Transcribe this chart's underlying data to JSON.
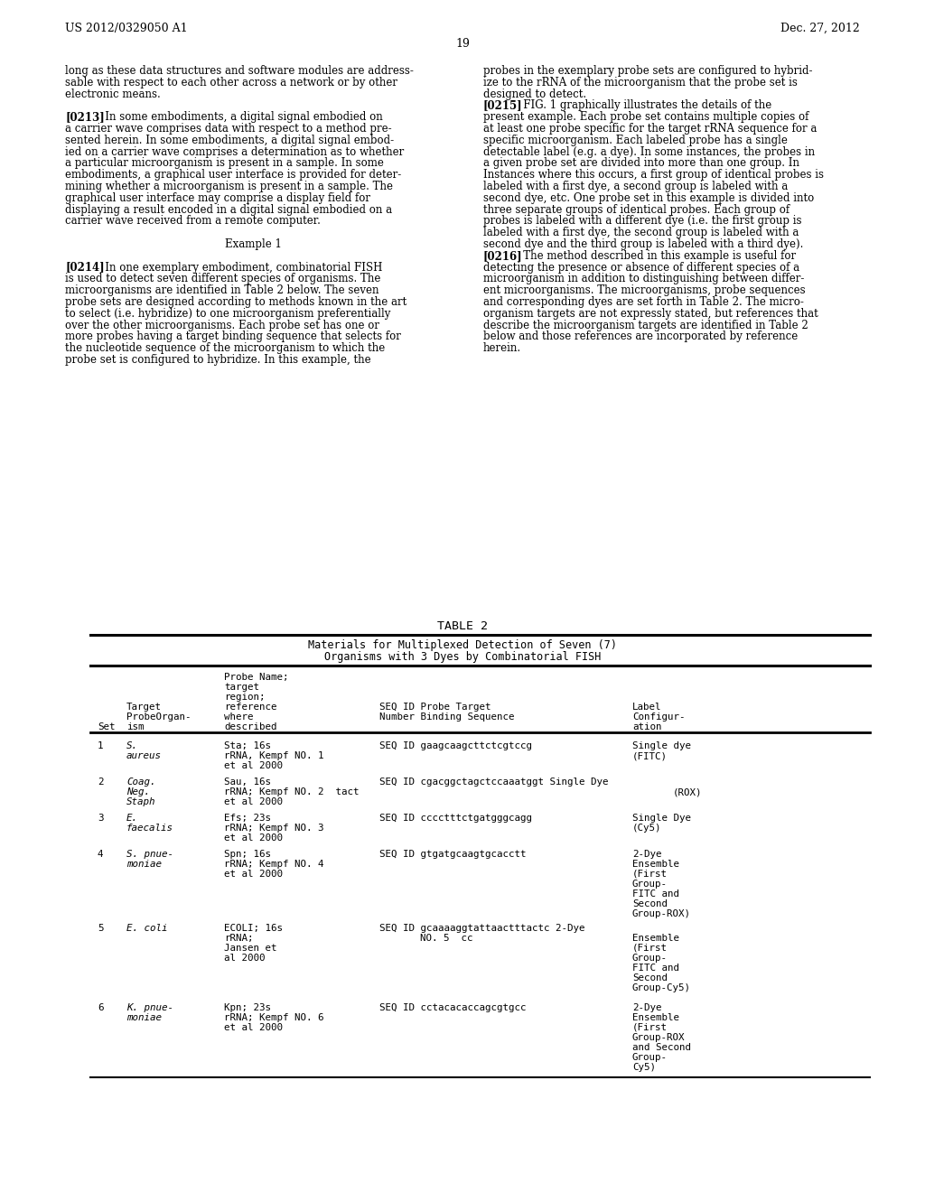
{
  "background_color": "#ffffff",
  "header_left": "US 2012/0329050 A1",
  "header_right": "Dec. 27, 2012",
  "page_number": "19",
  "left_col": [
    "long as these data structures and software modules are address-",
    "sable with respect to each other across a network or by other",
    "electronic means.",
    "",
    "    ►[0213]◄   In some embodiments, a digital signal embodied on",
    "a carrier wave comprises data with respect to a method pre-",
    "sented herein. In some embodiments, a digital signal embod-",
    "ied on a carrier wave comprises a determination as to whether",
    "a particular microorganism is present in a sample. In some",
    "embodiments, a graphical user interface is provided for deter-",
    "mining whether a microorganism is present in a sample. The",
    "graphical user interface may comprise a display field for",
    "displaying a result encoded in a digital signal embodied on a",
    "carrier wave received from a remote computer.",
    "",
    "Example 1",
    "",
    "    ►[0214]◄   In one exemplary embodiment, combinatorial FISH",
    "is used to detect seven different species of organisms. The",
    "microorganisms are identified in Table 2 below. The seven",
    "probe sets are designed according to methods known in the art",
    "to select (i.e. hybridize) to one microorganism preferentially",
    "over the other microorganisms. Each probe set has one or",
    "more probes having a target binding sequence that selects for",
    "the nucleotide sequence of the microorganism to which the",
    "probe set is configured to hybridize. In this example, the"
  ],
  "right_col": [
    "probes in the exemplary probe sets are configured to hybrid-",
    "ize to the rRNA of the microorganism that the probe set is",
    "designed to detect.",
    "    ►[0215]◄   FIG. 1 graphically illustrates the details of the",
    "present example. Each probe set contains multiple copies of",
    "at least one probe specific for the target rRNA sequence for a",
    "specific microorganism. Each labeled probe has a single",
    "detectable label (e.g. a dye). In some instances, the probes in",
    "a given probe set are divided into more than one group. In",
    "Instances where this occurs, a first group of identical probes is",
    "labeled with a first dye, a second group is labeled with a",
    "second dye, etc. One probe set in this example is divided into",
    "three separate groups of identical probes. Each group of",
    "probes is labeled with a different dye (i.e. the first group is",
    "labeled with a first dye, the second group is labeled with a",
    "second dye and the third group is labeled with a third dye).",
    "    ►[0216]◄   The method described in this example is useful for",
    "detecting the presence or absence of different species of a",
    "microorganism in addition to distinguishing between differ-",
    "ent microorganisms. The microorganisms, probe sequences",
    "and corresponding dyes are set forth in Table 2. The micro-",
    "organism targets are not expressly stated, but references that",
    "describe the microorganism targets are identified in Table 2",
    "below and those references are incorporated by reference",
    "herein."
  ],
  "para213": "[0213]",
  "para214": "[0214]",
  "para215": "[0215]",
  "para216": "[0216]",
  "table_title": "TABLE 2",
  "table_sub1": "Materials for Multiplexed Detection of Seven (7)",
  "table_sub2": "Organisms with 3 Dyes by Combinatorial FISH",
  "col_header": [
    "Probe Name;",
    "target",
    "region;",
    "reference",
    "where        SEQ ID Probe Target          Label",
    "Set  ProbeOrgan-",
    "     ism      described    Number Binding Sequence    Configur-",
    "                                                       ation"
  ],
  "rows": [
    {
      "num": "1",
      "org1": "S.",
      "org2": "aureus",
      "org3": "",
      "probe1": "Sta; 16s",
      "probe2": "rRNA, Kempf NO. 1",
      "probe3": "et al 2000",
      "seqid": "SEQ ID",
      "seq": "gaagcaagcttctcgtccg",
      "label1": "Single dye",
      "label2": "(FITC)",
      "label3": "",
      "label4": "",
      "label5": "",
      "label6": "",
      "label7": ""
    },
    {
      "num": "2",
      "org1": "Coag.",
      "org2": "Neg.",
      "org3": "Staph",
      "probe1": "Sau, 16s",
      "probe2": "rRNA; Kempf NO. 2  tact",
      "probe3": "et al 2000",
      "seqid": "SEQ ID",
      "seq": "cgacggctagctccaaatggt",
      "label1": "Single Dye",
      "label2": "(ROX)",
      "label3": "",
      "label4": "",
      "label5": "",
      "label6": "",
      "label7": ""
    },
    {
      "num": "3",
      "org1": "E.",
      "org2": "faecalis",
      "org3": "",
      "probe1": "Efs; 23s",
      "probe2": "rRNA; Kempf NO. 3",
      "probe3": "et al 2000",
      "seqid": "SEQ ID",
      "seq": "cccctttctgatgggcagg",
      "label1": "Single Dye",
      "label2": "(Cy5)",
      "label3": "",
      "label4": "",
      "label5": "",
      "label6": "",
      "label7": ""
    },
    {
      "num": "4",
      "org1": "S. pnue-",
      "org2": "moniae",
      "org3": "",
      "probe1": "Spn; 16s",
      "probe2": "rRNA; Kempf NO. 4",
      "probe3": "et al 2000",
      "seqid": "SEQ ID",
      "seq": "gtgatgcaagtgcacctt",
      "label1": "2-Dye",
      "label2": "Ensemble",
      "label3": "(First",
      "label4": "Group-",
      "label5": "FITC and",
      "label6": "Second",
      "label7": "Group-ROX)"
    },
    {
      "num": "5",
      "org1": "E. coli",
      "org2": "",
      "org3": "",
      "probe1": "ECOLI; 16s",
      "probe2": "rRNA;      NO. 5  cc",
      "probe3": "Jansen et",
      "probe4": "al 2000",
      "seqid": "SEQ ID",
      "seq": "gcaaaaggtattaactttactc",
      "label1": "2-Dye",
      "label2": "Ensemble",
      "label3": "(First",
      "label4": "Group-",
      "label5": "FITC and",
      "label6": "Second",
      "label7": "Group-Cy5)"
    },
    {
      "num": "6",
      "org1": "K. pnue-",
      "org2": "moniae",
      "org3": "",
      "probe1": "Kpn; 23s",
      "probe2": "rRNA; Kempf NO. 6",
      "probe3": "et al 2000",
      "seqid": "SEQ ID",
      "seq": "cctacacaccagcgtgcc",
      "label1": "2-Dye",
      "label2": "Ensemble",
      "label3": "(First",
      "label4": "Group-ROX",
      "label5": "and Second",
      "label6": "Group-",
      "label7": "Cy5)"
    }
  ]
}
